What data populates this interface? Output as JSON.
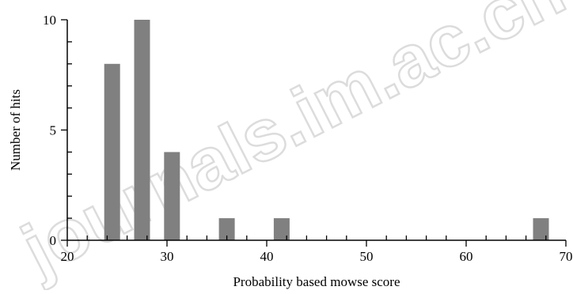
{
  "chart_data": {
    "type": "bar",
    "x": [
      24.5,
      27.5,
      30.5,
      36,
      41.5,
      67.5
    ],
    "values": [
      8,
      10,
      4,
      1,
      1,
      1
    ],
    "xlabel": "Probability based mowse score",
    "ylabel": "Number of hits",
    "xlim": [
      20,
      70
    ],
    "ylim": [
      0,
      10
    ],
    "xticks": [
      20,
      30,
      40,
      50,
      60,
      70
    ],
    "yticks": [
      0,
      5,
      10
    ],
    "bar_color": "#808080",
    "grid": false
  },
  "watermark": {
    "text": "journals.im.ac.cn"
  }
}
